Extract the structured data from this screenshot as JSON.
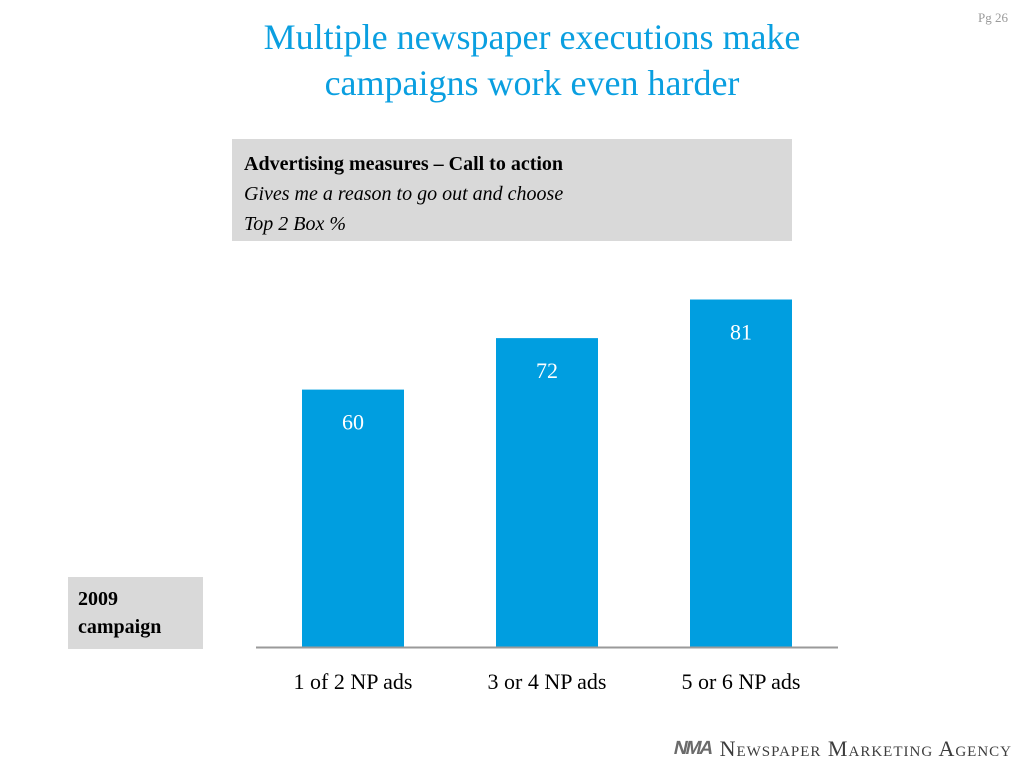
{
  "page_number": "Pg 26",
  "title_lines": [
    "Multiple newspaper executions make",
    "campaigns work even harder"
  ],
  "measure_box": {
    "heading": "Advertising measures – Call to action",
    "subtitle": "Gives me a reason to go out and choose",
    "metric": "Top 2 Box %"
  },
  "campaign_label_lines": [
    "2009",
    "campaign"
  ],
  "footer": {
    "logo_mark": "NMA",
    "logo_text": "Newspaper Marketing Agency"
  },
  "colors": {
    "title": "#0a9fe0",
    "bar": "#009ee0",
    "label_box": "#d9d9d9"
  },
  "chart_data": {
    "type": "bar",
    "categories": [
      "1 of 2 NP ads",
      "3 or 4 NP ads",
      "5 or 6 NP ads"
    ],
    "values": [
      60,
      72,
      81
    ],
    "data_labels": [
      "60",
      "72",
      "81"
    ],
    "ylim": [
      0,
      100
    ],
    "grid": false,
    "legend": "none"
  }
}
